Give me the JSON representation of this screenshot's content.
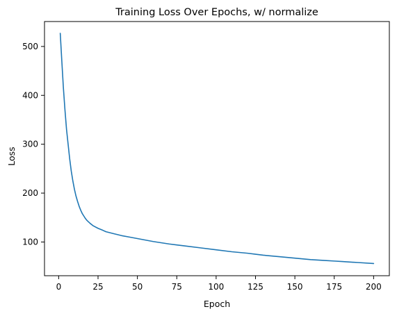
{
  "chart_data": {
    "type": "line",
    "title": "Training Loss Over Epochs, w/ normalize",
    "xlabel": "Epoch",
    "ylabel": "Loss",
    "xlim": [
      -9,
      210
    ],
    "ylim": [
      31,
      551
    ],
    "xticks": [
      0,
      25,
      50,
      75,
      100,
      125,
      150,
      175,
      200
    ],
    "yticks": [
      100,
      200,
      300,
      400,
      500
    ],
    "grid": false,
    "legend": "none",
    "series": [
      {
        "color": "#1f77b4",
        "points": [
          [
            1,
            527
          ],
          [
            2,
            470
          ],
          [
            3,
            415
          ],
          [
            4,
            370
          ],
          [
            5,
            330
          ],
          [
            6,
            300
          ],
          [
            7,
            270
          ],
          [
            8,
            245
          ],
          [
            9,
            225
          ],
          [
            10,
            208
          ],
          [
            11,
            194
          ],
          [
            12,
            183
          ],
          [
            13,
            173
          ],
          [
            14,
            165
          ],
          [
            15,
            158
          ],
          [
            16,
            153
          ],
          [
            17,
            148
          ],
          [
            18,
            144
          ],
          [
            19,
            141
          ],
          [
            20,
            138
          ],
          [
            22,
            133
          ],
          [
            25,
            128
          ],
          [
            28,
            124
          ],
          [
            30,
            121
          ],
          [
            35,
            117
          ],
          [
            40,
            113
          ],
          [
            45,
            110
          ],
          [
            50,
            107
          ],
          [
            60,
            101
          ],
          [
            70,
            96
          ],
          [
            75,
            94
          ],
          [
            80,
            92
          ],
          [
            90,
            88
          ],
          [
            100,
            84
          ],
          [
            110,
            80
          ],
          [
            120,
            77
          ],
          [
            125,
            75
          ],
          [
            130,
            73
          ],
          [
            140,
            70
          ],
          [
            150,
            67
          ],
          [
            160,
            64
          ],
          [
            170,
            62
          ],
          [
            175,
            61
          ],
          [
            180,
            60
          ],
          [
            190,
            58
          ],
          [
            200,
            56
          ]
        ]
      }
    ]
  }
}
